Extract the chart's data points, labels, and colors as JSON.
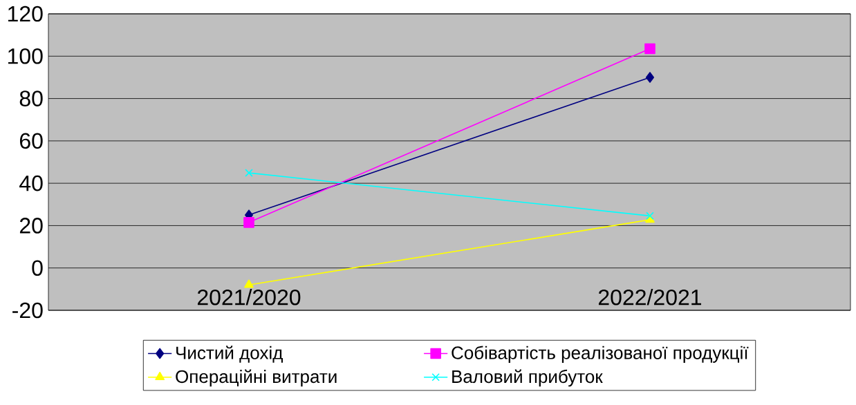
{
  "chart_data": {
    "type": "line",
    "categories": [
      "2021/2020",
      "2022/2021"
    ],
    "series": [
      {
        "name": "Чистий дохід",
        "color": "#000080",
        "marker": "diamond",
        "values": [
          25,
          90
        ]
      },
      {
        "name": "Собівартість реалізованої продукції",
        "color": "#ff00ff",
        "marker": "square",
        "values": [
          21.5,
          103.5
        ]
      },
      {
        "name": "Операційні витрати",
        "color": "#ffff00",
        "marker": "triangle",
        "values": [
          -8,
          22.8
        ]
      },
      {
        "name": "Валовий прибуток",
        "color": "#00ffff",
        "marker": "cross",
        "values": [
          44.9,
          24.6
        ]
      }
    ],
    "ylim": [
      -20,
      120
    ],
    "yticks": [
      -20,
      0,
      20,
      40,
      60,
      80,
      100,
      120
    ],
    "grid": "y",
    "legend": "bottom"
  }
}
